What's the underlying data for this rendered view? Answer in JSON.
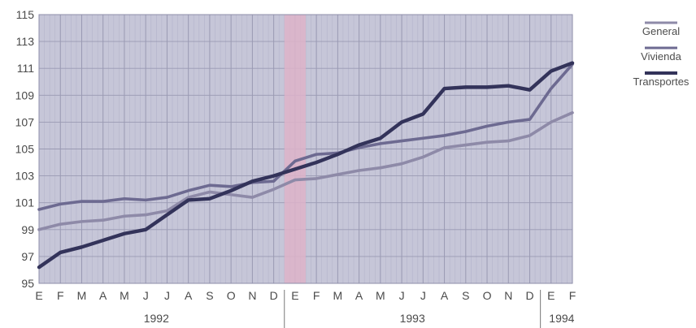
{
  "chart_data": {
    "type": "line",
    "title": "",
    "xlabel": "",
    "ylabel": "",
    "ylim": [
      95,
      115
    ],
    "yticks": [
      95,
      97,
      99,
      101,
      103,
      105,
      107,
      109,
      111,
      113,
      115
    ],
    "categories": [
      "E",
      "F",
      "M",
      "A",
      "M",
      "J",
      "J",
      "A",
      "S",
      "O",
      "N",
      "D",
      "E",
      "F",
      "M",
      "A",
      "M",
      "J",
      "J",
      "A",
      "S",
      "O",
      "N",
      "D",
      "E",
      "F"
    ],
    "years": [
      {
        "label": "1992",
        "start": 0,
        "end": 11
      },
      {
        "label": "1993",
        "start": 12,
        "end": 23
      },
      {
        "label": "1994",
        "start": 24,
        "end": 25
      }
    ],
    "grid": true,
    "legend_position": "right",
    "series": [
      {
        "name": "General",
        "color": "#8e8aa8",
        "values": [
          99.0,
          99.4,
          99.6,
          99.7,
          100.0,
          100.1,
          100.4,
          101.4,
          101.8,
          101.6,
          101.4,
          102.0,
          102.7,
          102.8,
          103.1,
          103.4,
          103.6,
          103.9,
          104.4,
          105.1,
          105.3,
          105.5,
          105.6,
          106.0,
          107.0,
          107.7
        ]
      },
      {
        "name": "Vivienda",
        "color": "#6d6a91",
        "values": [
          100.5,
          100.9,
          101.1,
          101.1,
          101.3,
          101.2,
          101.4,
          101.9,
          102.3,
          102.2,
          102.5,
          102.6,
          104.1,
          104.6,
          104.7,
          105.1,
          105.4,
          105.6,
          105.8,
          106.0,
          106.3,
          106.7,
          107.0,
          107.2,
          109.5,
          111.3
        ]
      },
      {
        "name": "Transportes",
        "color": "#33335a",
        "values": [
          96.2,
          97.3,
          97.7,
          98.2,
          98.7,
          99.0,
          100.1,
          101.2,
          101.3,
          101.9,
          102.6,
          103.0,
          103.5,
          104.0,
          104.6,
          105.3,
          105.8,
          107.0,
          107.6,
          109.5,
          109.6,
          109.6,
          109.7,
          109.4,
          110.8,
          111.4
        ]
      }
    ],
    "highlight_month_index": 12,
    "colors": {
      "plot_background": "#c6c6d8",
      "grid_line": "#9a9ab3",
      "highlight_band": "#ddb3c9"
    }
  }
}
